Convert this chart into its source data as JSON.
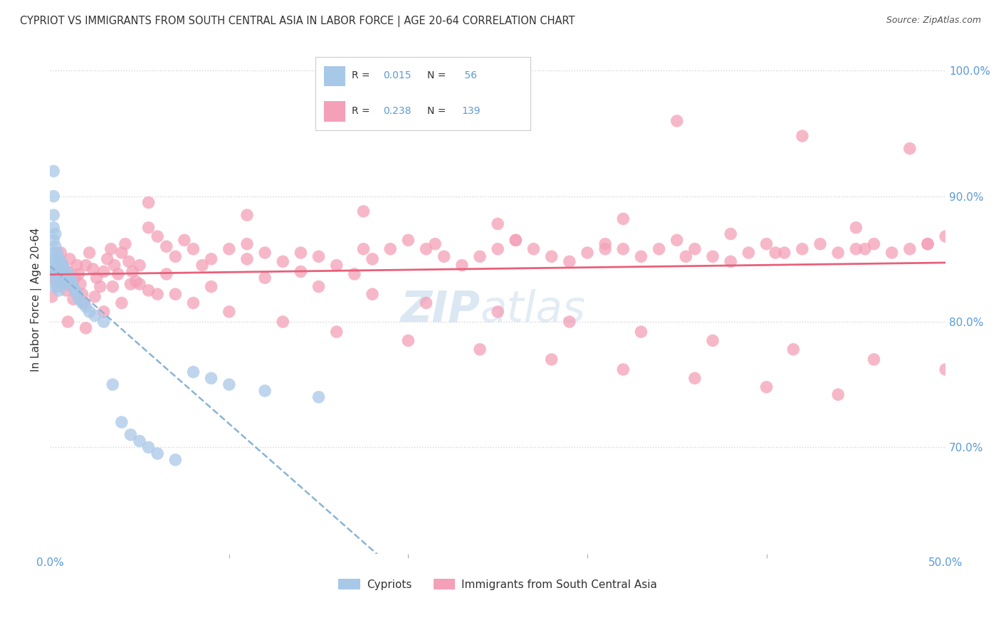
{
  "title": "CYPRIOT VS IMMIGRANTS FROM SOUTH CENTRAL ASIA IN LABOR FORCE | AGE 20-64 CORRELATION CHART",
  "source": "Source: ZipAtlas.com",
  "ylabel": "In Labor Force | Age 20-64",
  "ytick_labels": [
    "100.0%",
    "90.0%",
    "80.0%",
    "70.0%"
  ],
  "ytick_values": [
    1.0,
    0.9,
    0.8,
    0.7
  ],
  "xtick_left": "0.0%",
  "xtick_right": "50.0%",
  "color_cypriot": "#a8c8e8",
  "color_immigrant": "#f4a0b8",
  "color_line_cypriot": "#6aaad4",
  "color_line_immigrant": "#e8607a",
  "color_blue_text": "#5b9bd5",
  "watermark_color": "#b8d0e8",
  "background": "#ffffff",
  "grid_color": "#d0d0d0",
  "xlim": [
    0.0,
    0.5
  ],
  "ylim": [
    0.615,
    1.02
  ],
  "cypriot_x": [
    0.001,
    0.001,
    0.001,
    0.002,
    0.002,
    0.002,
    0.002,
    0.002,
    0.002,
    0.003,
    0.003,
    0.003,
    0.003,
    0.003,
    0.004,
    0.004,
    0.004,
    0.004,
    0.005,
    0.005,
    0.005,
    0.005,
    0.006,
    0.006,
    0.006,
    0.007,
    0.007,
    0.008,
    0.008,
    0.009,
    0.009,
    0.01,
    0.01,
    0.011,
    0.012,
    0.013,
    0.014,
    0.015,
    0.016,
    0.018,
    0.02,
    0.022,
    0.025,
    0.03,
    0.035,
    0.04,
    0.045,
    0.05,
    0.055,
    0.06,
    0.07,
    0.08,
    0.09,
    0.1,
    0.12,
    0.15
  ],
  "cypriot_y": [
    0.85,
    0.84,
    0.835,
    0.92,
    0.9,
    0.885,
    0.875,
    0.865,
    0.855,
    0.87,
    0.86,
    0.848,
    0.838,
    0.828,
    0.855,
    0.845,
    0.838,
    0.828,
    0.85,
    0.842,
    0.835,
    0.825,
    0.848,
    0.84,
    0.832,
    0.845,
    0.838,
    0.842,
    0.835,
    0.84,
    0.832,
    0.838,
    0.83,
    0.835,
    0.832,
    0.828,
    0.825,
    0.822,
    0.818,
    0.815,
    0.812,
    0.808,
    0.805,
    0.8,
    0.75,
    0.72,
    0.71,
    0.705,
    0.7,
    0.695,
    0.69,
    0.76,
    0.755,
    0.75,
    0.745,
    0.74
  ],
  "immigrant_x": [
    0.001,
    0.002,
    0.003,
    0.004,
    0.005,
    0.006,
    0.006,
    0.007,
    0.008,
    0.009,
    0.01,
    0.011,
    0.012,
    0.013,
    0.014,
    0.015,
    0.016,
    0.017,
    0.018,
    0.019,
    0.02,
    0.022,
    0.024,
    0.026,
    0.028,
    0.03,
    0.032,
    0.034,
    0.036,
    0.038,
    0.04,
    0.042,
    0.044,
    0.046,
    0.048,
    0.05,
    0.055,
    0.06,
    0.065,
    0.07,
    0.075,
    0.08,
    0.09,
    0.1,
    0.11,
    0.12,
    0.13,
    0.14,
    0.15,
    0.16,
    0.17,
    0.18,
    0.19,
    0.2,
    0.21,
    0.22,
    0.23,
    0.24,
    0.25,
    0.26,
    0.27,
    0.28,
    0.29,
    0.3,
    0.31,
    0.32,
    0.33,
    0.34,
    0.35,
    0.36,
    0.37,
    0.38,
    0.39,
    0.4,
    0.41,
    0.42,
    0.43,
    0.44,
    0.45,
    0.46,
    0.47,
    0.48,
    0.49,
    0.5,
    0.025,
    0.035,
    0.045,
    0.055,
    0.065,
    0.085,
    0.11,
    0.14,
    0.175,
    0.215,
    0.26,
    0.31,
    0.355,
    0.405,
    0.455,
    0.01,
    0.02,
    0.03,
    0.04,
    0.06,
    0.08,
    0.1,
    0.13,
    0.16,
    0.2,
    0.24,
    0.28,
    0.32,
    0.36,
    0.4,
    0.44,
    0.05,
    0.07,
    0.09,
    0.12,
    0.15,
    0.18,
    0.21,
    0.25,
    0.29,
    0.33,
    0.37,
    0.415,
    0.46,
    0.5,
    0.35,
    0.42,
    0.48,
    0.11,
    0.25,
    0.38,
    0.49,
    0.055,
    0.175,
    0.32,
    0.45
  ],
  "immigrant_y": [
    0.82,
    0.835,
    0.84,
    0.83,
    0.848,
    0.838,
    0.855,
    0.845,
    0.832,
    0.825,
    0.84,
    0.85,
    0.828,
    0.818,
    0.835,
    0.845,
    0.838,
    0.83,
    0.822,
    0.815,
    0.845,
    0.855,
    0.842,
    0.835,
    0.828,
    0.84,
    0.85,
    0.858,
    0.845,
    0.838,
    0.855,
    0.862,
    0.848,
    0.84,
    0.832,
    0.845,
    0.875,
    0.868,
    0.86,
    0.852,
    0.865,
    0.858,
    0.85,
    0.858,
    0.862,
    0.855,
    0.848,
    0.84,
    0.852,
    0.845,
    0.838,
    0.85,
    0.858,
    0.865,
    0.858,
    0.852,
    0.845,
    0.852,
    0.858,
    0.865,
    0.858,
    0.852,
    0.848,
    0.855,
    0.862,
    0.858,
    0.852,
    0.858,
    0.865,
    0.858,
    0.852,
    0.848,
    0.855,
    0.862,
    0.855,
    0.858,
    0.862,
    0.855,
    0.858,
    0.862,
    0.855,
    0.858,
    0.862,
    0.868,
    0.82,
    0.828,
    0.83,
    0.825,
    0.838,
    0.845,
    0.85,
    0.855,
    0.858,
    0.862,
    0.865,
    0.858,
    0.852,
    0.855,
    0.858,
    0.8,
    0.795,
    0.808,
    0.815,
    0.822,
    0.815,
    0.808,
    0.8,
    0.792,
    0.785,
    0.778,
    0.77,
    0.762,
    0.755,
    0.748,
    0.742,
    0.83,
    0.822,
    0.828,
    0.835,
    0.828,
    0.822,
    0.815,
    0.808,
    0.8,
    0.792,
    0.785,
    0.778,
    0.77,
    0.762,
    0.96,
    0.948,
    0.938,
    0.885,
    0.878,
    0.87,
    0.862,
    0.895,
    0.888,
    0.882,
    0.875
  ]
}
